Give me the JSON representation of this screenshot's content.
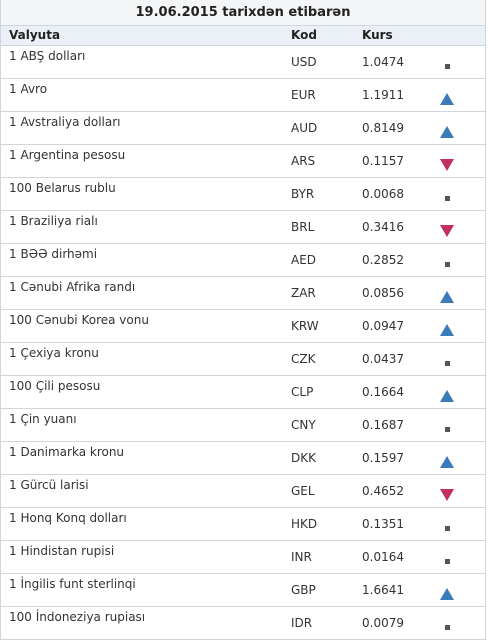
{
  "title": "19.06.2015 tarixdən etibarən",
  "header": {
    "currency": "Valyuta",
    "code": "Kod",
    "rate": "Kurs"
  },
  "colors": {
    "up": "#3a7ab8",
    "down": "#c03060",
    "same": "#555555",
    "border": "#cfd6dd"
  },
  "rows": [
    {
      "name": "1 ABŞ dolları",
      "code": "USD",
      "rate": "1.0474",
      "trend": "same"
    },
    {
      "name": "1 Avro",
      "code": "EUR",
      "rate": "1.1911",
      "trend": "up"
    },
    {
      "name": "1 Avstraliya dolları",
      "code": "AUD",
      "rate": "0.8149",
      "trend": "up"
    },
    {
      "name": "1 Argentina pesosu",
      "code": "ARS",
      "rate": "0.1157",
      "trend": "down"
    },
    {
      "name": "100 Belarus rublu",
      "code": "BYR",
      "rate": "0.0068",
      "trend": "same"
    },
    {
      "name": "1 Braziliya rialı",
      "code": "BRL",
      "rate": "0.3416",
      "trend": "down"
    },
    {
      "name": "1 BƏƏ dirhəmi",
      "code": "AED",
      "rate": "0.2852",
      "trend": "same"
    },
    {
      "name": "1 Cənubi Afrika randı",
      "code": "ZAR",
      "rate": "0.0856",
      "trend": "up"
    },
    {
      "name": "100 Cənubi Korea vonu",
      "code": "KRW",
      "rate": "0.0947",
      "trend": "up"
    },
    {
      "name": "1 Çexiya kronu",
      "code": "CZK",
      "rate": "0.0437",
      "trend": "same"
    },
    {
      "name": "100 Çili pesosu",
      "code": "CLP",
      "rate": "0.1664",
      "trend": "up"
    },
    {
      "name": "1 Çin yuanı",
      "code": "CNY",
      "rate": "0.1687",
      "trend": "same"
    },
    {
      "name": "1 Danimarka kronu",
      "code": "DKK",
      "rate": "0.1597",
      "trend": "up"
    },
    {
      "name": "1 Gürcü larisi",
      "code": "GEL",
      "rate": "0.4652",
      "trend": "down"
    },
    {
      "name": "1 Honq Konq dolları",
      "code": "HKD",
      "rate": "0.1351",
      "trend": "same"
    },
    {
      "name": "1 Hindistan rupisi",
      "code": "INR",
      "rate": "0.0164",
      "trend": "same"
    },
    {
      "name": "1 İngilis funt sterlinqi",
      "code": "GBP",
      "rate": "1.6641",
      "trend": "up"
    },
    {
      "name": "100 İndoneziya rupiası",
      "code": "IDR",
      "rate": "0.0079",
      "trend": "same"
    }
  ]
}
